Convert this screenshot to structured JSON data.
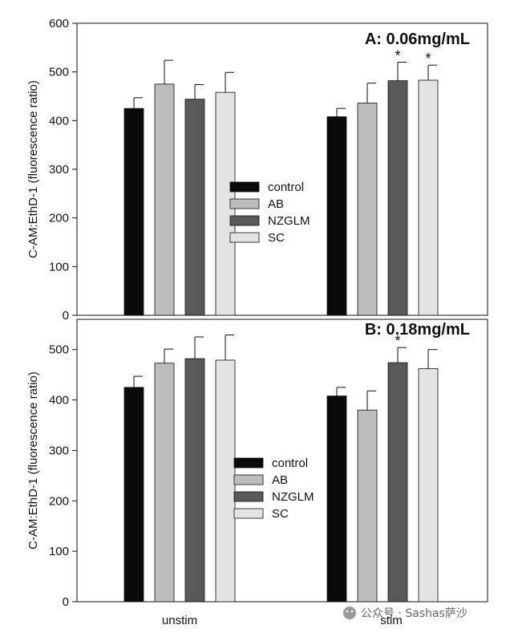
{
  "chart_data": [
    {
      "type": "bar",
      "title": "A: 0.06mg/mL",
      "ylabel": "C-AM:EthD-1 (fluorescence ratio)",
      "xlabel": "",
      "ylim": [
        0,
        600
      ],
      "yticks": [
        0,
        100,
        200,
        300,
        400,
        500,
        600
      ],
      "categories": [
        "unstim",
        "stim"
      ],
      "series": [
        {
          "name": "control",
          "color": "#0a0a0a",
          "values": [
            425,
            408
          ],
          "errors": [
            22,
            17
          ]
        },
        {
          "name": "AB",
          "color": "#bdbdbd",
          "values": [
            475,
            436
          ],
          "errors": [
            49,
            41
          ]
        },
        {
          "name": "NZGLM",
          "color": "#595959",
          "values": [
            444,
            482
          ],
          "errors": [
            30,
            38
          ]
        },
        {
          "name": "SC",
          "color": "#e3e3e3",
          "values": [
            458,
            483
          ],
          "errors": [
            41,
            31
          ]
        }
      ],
      "significance": [
        {
          "series": "NZGLM",
          "category": "stim",
          "mark": "*"
        },
        {
          "series": "SC",
          "category": "stim",
          "mark": "*"
        }
      ],
      "legend_position": "center"
    },
    {
      "type": "bar",
      "title": "B: 0.18mg/mL",
      "ylabel": "C-AM:EthD-1 (fluorescence ratio)",
      "xlabel": "",
      "ylim": [
        0,
        560
      ],
      "yticks": [
        0,
        100,
        200,
        300,
        400,
        500
      ],
      "categories": [
        "unstim",
        "stim"
      ],
      "series": [
        {
          "name": "control",
          "color": "#0a0a0a",
          "values": [
            425,
            408
          ],
          "errors": [
            22,
            17
          ]
        },
        {
          "name": "AB",
          "color": "#bdbdbd",
          "values": [
            473,
            380
          ],
          "errors": [
            28,
            38
          ]
        },
        {
          "name": "NZGLM",
          "color": "#595959",
          "values": [
            482,
            474
          ],
          "errors": [
            43,
            30
          ]
        },
        {
          "name": "SC",
          "color": "#e3e3e3",
          "values": [
            479,
            462
          ],
          "errors": [
            50,
            38
          ]
        }
      ],
      "significance": [
        {
          "series": "NZGLM",
          "category": "stim",
          "mark": "*"
        }
      ],
      "legend_position": "center"
    }
  ],
  "watermark": "公众号 · Sashas萨沙"
}
